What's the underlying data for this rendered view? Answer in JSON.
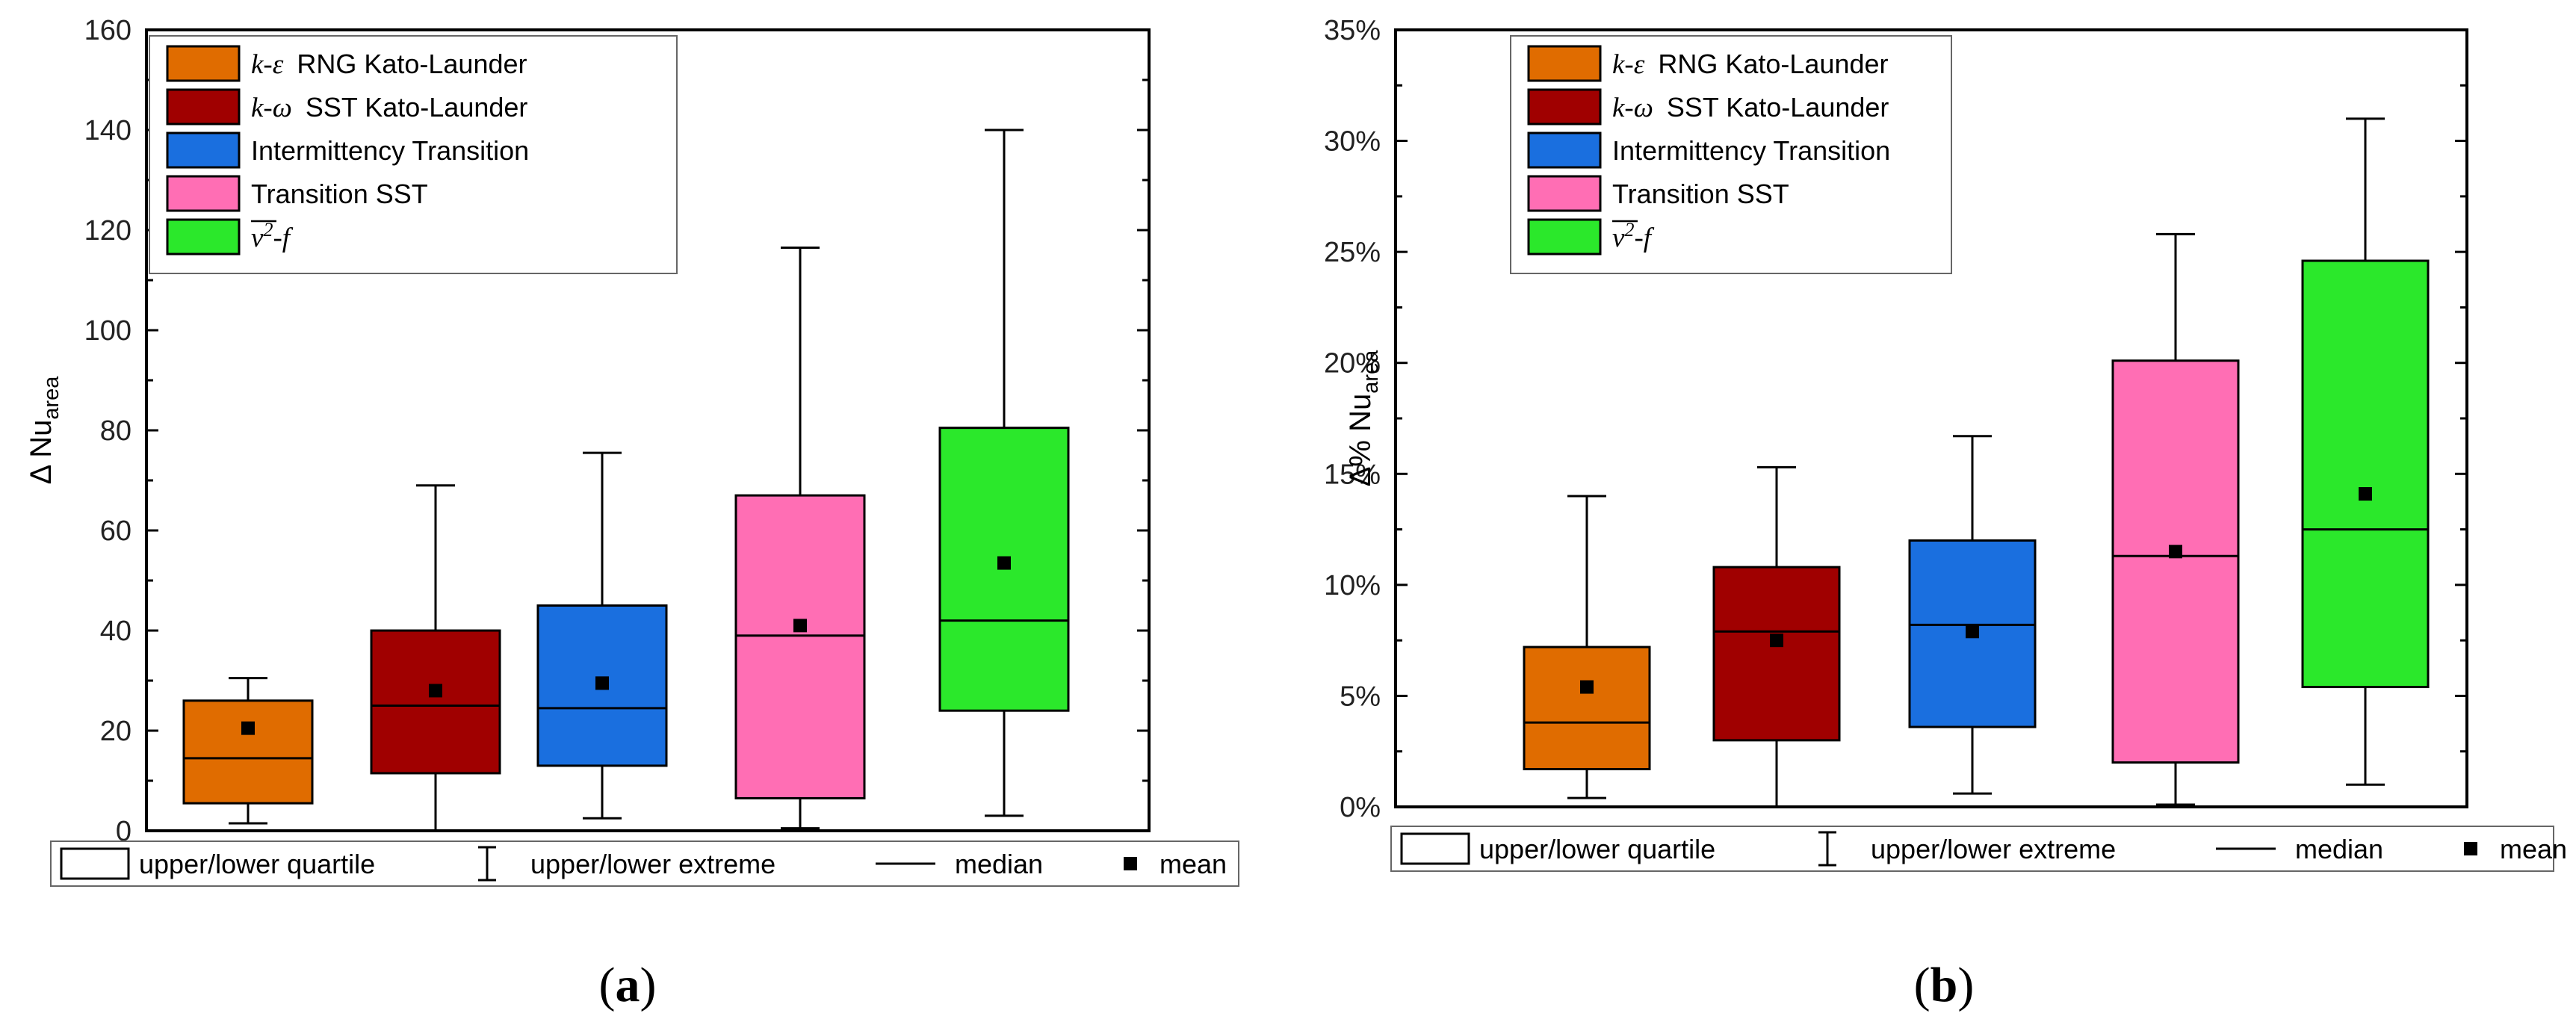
{
  "chart_data": [
    {
      "type": "box",
      "panel_label": "a",
      "ylabel": "Δ Nu",
      "ylabel_sub": "area",
      "ylim": [
        0,
        160
      ],
      "yticks": [
        "0",
        "20",
        "40",
        "60",
        "80",
        "100",
        "120",
        "140",
        "160"
      ],
      "series": [
        {
          "name": "k-ε RNG Kato-Launder",
          "name_prefix": "k-ε",
          "name_rest": "RNG Kato-Launder",
          "color": "#e06c00",
          "min": 1.5,
          "q1": 5.5,
          "median": 14.5,
          "q3": 26,
          "max": 30.5,
          "mean": 20.5
        },
        {
          "name": "k-ω SST Kato-Launder",
          "name_prefix": "k-ω",
          "name_rest": "SST Kato-Launder",
          "color": "#a00000",
          "min": 0,
          "q1": 11.5,
          "median": 25,
          "q3": 40,
          "max": 69,
          "mean": 28
        },
        {
          "name": "Intermittency Transition",
          "color": "#1a6fdf",
          "min": 2.5,
          "q1": 13,
          "median": 24.5,
          "q3": 45,
          "max": 75.5,
          "mean": 29.5
        },
        {
          "name": "Transition SST",
          "color": "#ff6eb4",
          "min": 0.5,
          "q1": 6.5,
          "median": 39,
          "q3": 67,
          "max": 116.5,
          "mean": 41
        },
        {
          "name": "v2-f",
          "color": "#2be82b",
          "min": 3,
          "q1": 24,
          "median": 42,
          "q3": 80.5,
          "max": 140,
          "mean": 53.5
        }
      ]
    },
    {
      "type": "box",
      "panel_label": "b",
      "ylabel": "Δ% Nu",
      "ylabel_sub": "area",
      "ylim": [
        0,
        35
      ],
      "yticks": [
        "0%",
        "5%",
        "10%",
        "15%",
        "20%",
        "25%",
        "30%",
        "35%"
      ],
      "series": [
        {
          "name": "k-ε RNG Kato-Launder",
          "name_prefix": "k-ε",
          "name_rest": "RNG Kato-Launder",
          "color": "#e06c00",
          "min": 0.4,
          "q1": 1.7,
          "median": 3.8,
          "q3": 7.2,
          "max": 14,
          "mean": 5.4
        },
        {
          "name": "k-ω SST Kato-Launder",
          "name_prefix": "k-ω",
          "name_rest": "SST Kato-Launder",
          "color": "#a00000",
          "min": 0,
          "q1": 3,
          "median": 7.9,
          "q3": 10.8,
          "max": 15.3,
          "mean": 7.5
        },
        {
          "name": "Intermittency Transition",
          "color": "#1a6fdf",
          "min": 0.6,
          "q1": 3.6,
          "median": 8.2,
          "q3": 12,
          "max": 16.7,
          "mean": 7.9
        },
        {
          "name": "Transition SST",
          "color": "#ff6eb4",
          "min": 0.1,
          "q1": 2,
          "median": 11.3,
          "q3": 20.1,
          "max": 25.8,
          "mean": 11.5
        },
        {
          "name": "v2-f",
          "color": "#2be82b",
          "min": 1,
          "q1": 5.4,
          "median": 12.5,
          "q3": 24.6,
          "max": 31,
          "mean": 14.1
        }
      ]
    }
  ],
  "bottom_legend": {
    "quartile": "upper/lower quartile",
    "extreme": "upper/lower extreme",
    "median": "median",
    "mean": "mean"
  },
  "vf_label": {
    "v": "v",
    "sup": "2",
    "rest": "-f"
  }
}
